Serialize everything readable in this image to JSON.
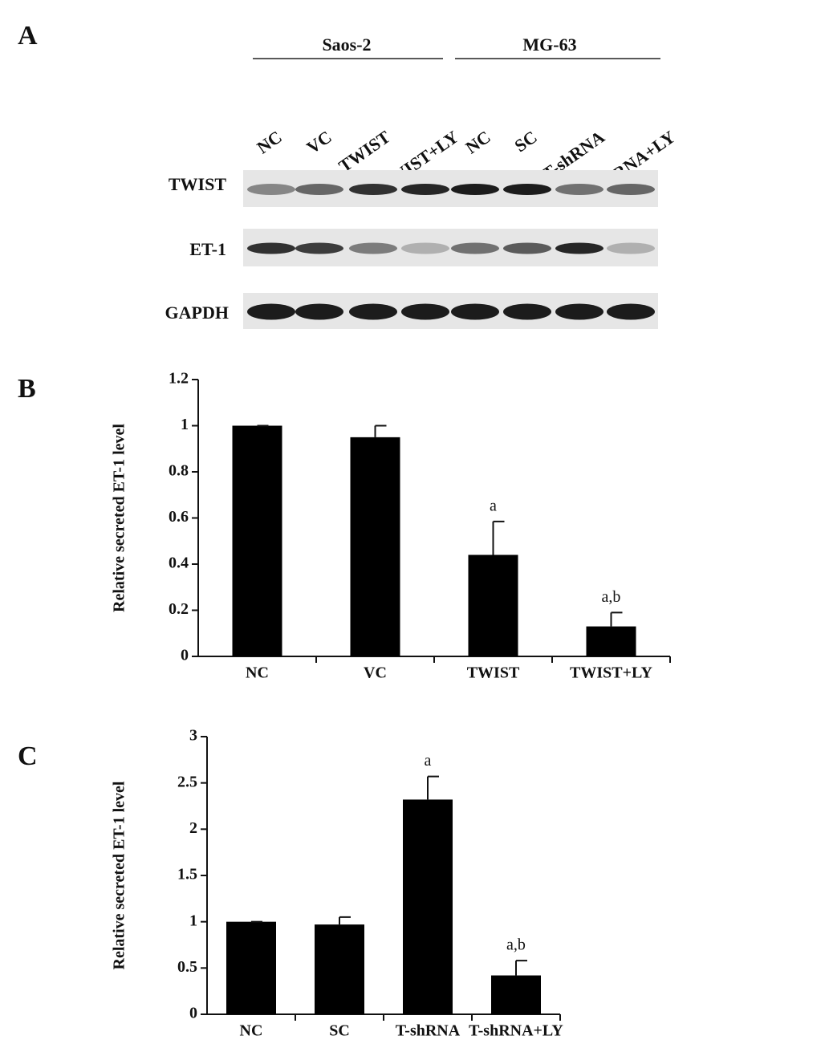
{
  "panel_labels": [
    "A",
    "B",
    "C"
  ],
  "blot": {
    "groups": [
      "Saos-2",
      "MG-63"
    ],
    "lanes": [
      "NC",
      "VC",
      "TWIST",
      "TWIST+LY",
      "NC",
      "SC",
      "T-shRNA",
      "T-shRNA+LY"
    ],
    "rows": [
      "TWIST",
      "ET-1",
      "GAPDH"
    ]
  },
  "chart_data": [
    {
      "type": "bar",
      "y_label": "Relative secreted ET-1 level",
      "categories": [
        "NC",
        "VC",
        "TWIST",
        "TWIST+LY"
      ],
      "values": [
        1,
        0.95,
        0.44,
        0.13
      ],
      "errors": [
        0,
        0.05,
        0.145,
        0.06
      ],
      "annotations": [
        {
          "category": "TWIST",
          "text": "a"
        },
        {
          "category": "TWIST+LY",
          "text": "a,b"
        }
      ],
      "color": "#000000",
      "ylim": [
        0,
        1.2
      ],
      "yticks": [
        0,
        0.2,
        0.4,
        0.6,
        0.8,
        1,
        1.2
      ]
    },
    {
      "type": "bar",
      "y_label": "Relative secreted ET-1 level",
      "categories": [
        "NC",
        "SC",
        "T-shRNA",
        "T-shRNA+LY"
      ],
      "values": [
        1,
        0.97,
        2.32,
        0.42
      ],
      "errors": [
        0,
        0.08,
        0.25,
        0.16
      ],
      "annotations": [
        {
          "category": "T-shRNA",
          "text": "a"
        },
        {
          "category": "T-shRNA+LY",
          "text": "a,b"
        }
      ],
      "color": "#000000",
      "ylim": [
        0,
        3
      ],
      "yticks": [
        0,
        0.5,
        1,
        1.5,
        2,
        2.5,
        3
      ]
    }
  ]
}
